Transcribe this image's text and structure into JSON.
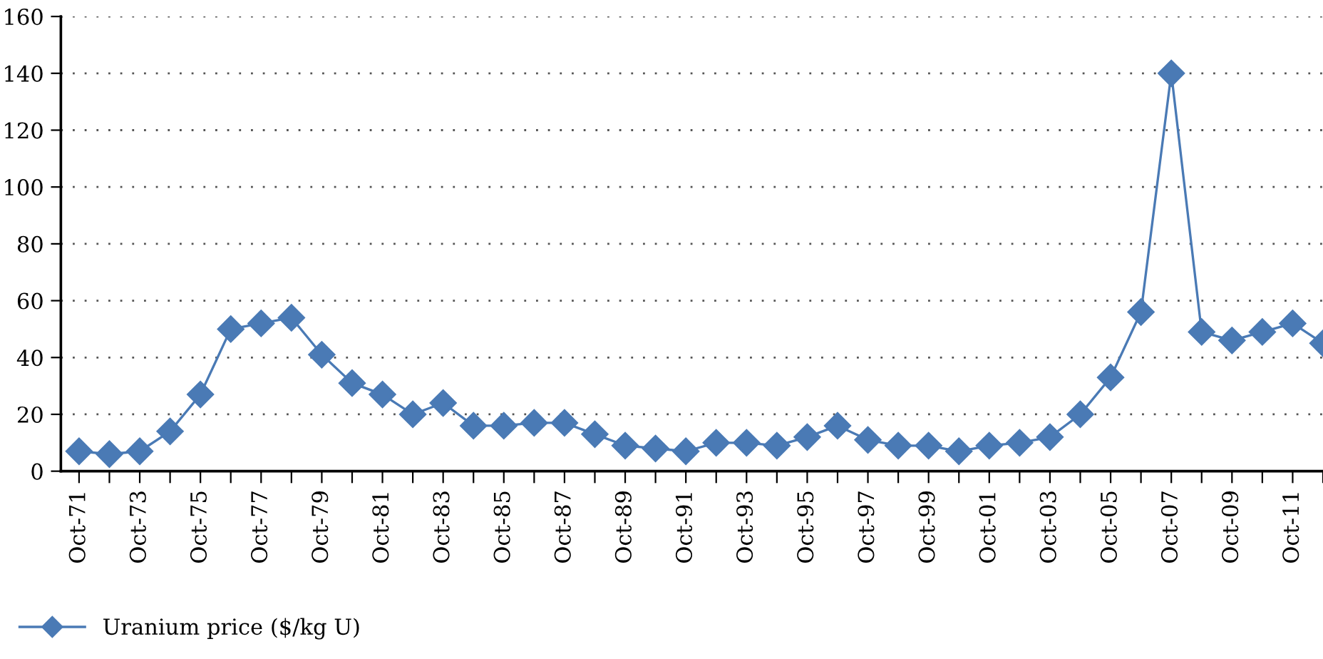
{
  "chart_data": {
    "type": "line",
    "categories": [
      "Oct-71",
      null,
      "Oct-73",
      null,
      "Oct-75",
      null,
      "Oct-77",
      null,
      "Oct-79",
      null,
      "Oct-81",
      null,
      "Oct-83",
      null,
      "Oct-85",
      null,
      "Oct-87",
      null,
      "Oct-89",
      null,
      "Oct-91",
      null,
      "Oct-93",
      null,
      "Oct-95",
      null,
      "Oct-97",
      null,
      "Oct-99",
      null,
      "Oct-01",
      null,
      "Oct-03",
      null,
      "Oct-05",
      null,
      "Oct-07",
      null,
      "Oct-09",
      null,
      "Oct-11",
      null
    ],
    "series": [
      {
        "name": "Uranium price ($/kg U)",
        "color": "#4a7ab5",
        "values": [
          7,
          6,
          7,
          14,
          27,
          50,
          52,
          54,
          41,
          31,
          27,
          20,
          24,
          16,
          16,
          17,
          17,
          13,
          9,
          8,
          7,
          10,
          10,
          9,
          12,
          16,
          11,
          9,
          9,
          7,
          9,
          10,
          12,
          20,
          33,
          56,
          140,
          49,
          46,
          49,
          52,
          45
        ]
      }
    ],
    "ylim": [
      0,
      160
    ],
    "yticks": [
      0,
      20,
      40,
      60,
      80,
      100,
      120,
      140,
      160
    ],
    "grid": "y",
    "legend": "bottom left",
    "marker": "diamond",
    "line_style": "solid"
  }
}
